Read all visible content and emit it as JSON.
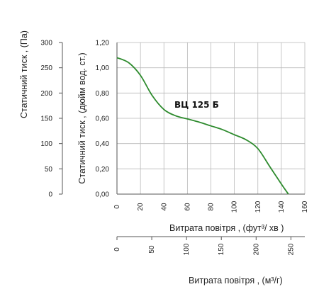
{
  "chart_data": {
    "type": "line",
    "series": [
      {
        "name": "ВЦ 125 Б",
        "color": "#2e8b2e",
        "x_cfm": [
          0,
          10,
          20,
          30,
          40,
          50,
          60,
          70,
          80,
          90,
          100,
          110,
          120,
          130,
          140,
          146
        ],
        "y_inwg": [
          1.08,
          1.04,
          0.94,
          0.78,
          0.67,
          0.62,
          0.595,
          0.57,
          0.54,
          0.51,
          0.47,
          0.43,
          0.36,
          0.22,
          0.08,
          0.0
        ]
      }
    ],
    "x_primary": {
      "label": "Витрата повітря , (фут³/ хв )",
      "ticks": [
        "0",
        "20",
        "40",
        "60",
        "80",
        "100",
        "120",
        "140",
        "160"
      ],
      "range": [
        0,
        160
      ]
    },
    "x_secondary": {
      "label": "Витрата повітря , (м³/г)",
      "ticks": [
        "0",
        "50",
        "100",
        "150",
        "200",
        "250"
      ],
      "range": [
        0,
        270
      ]
    },
    "y_primary": {
      "label": "Статичний тиск , (дюйм вод. ст.)",
      "ticks": [
        "0,00",
        "0,20",
        "0,40",
        "0,60",
        "0,80",
        "1,00",
        "1,20"
      ],
      "range": [
        0,
        1.2
      ]
    },
    "y_secondary": {
      "label": "Статичний тиск , (Па)",
      "ticks": [
        "0",
        "50",
        "100",
        "150",
        "200",
        "250",
        "300"
      ],
      "range": [
        0,
        300
      ]
    },
    "grid": true
  }
}
